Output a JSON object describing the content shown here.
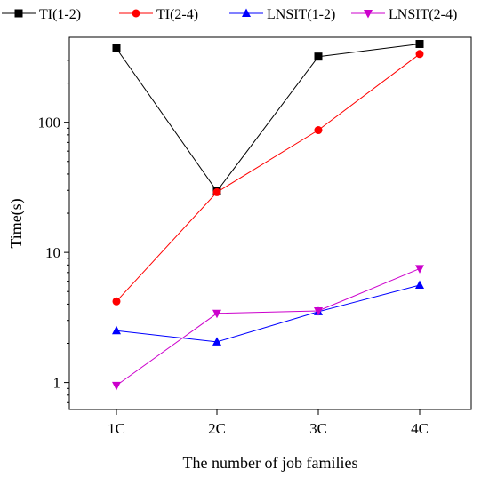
{
  "chart_data": {
    "type": "line",
    "title": "",
    "xlabel": "The number of job families",
    "ylabel": "Time(s)",
    "yscale": "log",
    "ylim": [
      0.62,
      450
    ],
    "categories": [
      "1C",
      "2C",
      "3C",
      "4C"
    ],
    "yticks": [
      1,
      10,
      100
    ],
    "ytick_labels": [
      "1",
      "10",
      "100"
    ],
    "grid": false,
    "legend_position": "top",
    "series": [
      {
        "name": "TI(1-2)",
        "color": "#000000",
        "marker": "square",
        "values": [
          370,
          29.5,
          320,
          400
        ]
      },
      {
        "name": "TI(2-4)",
        "color": "#ff0000",
        "marker": "circle",
        "values": [
          4.2,
          29,
          87,
          335
        ]
      },
      {
        "name": "LNSIT(1-2)",
        "color": "#0000ff",
        "marker": "triangle-up",
        "values": [
          2.5,
          2.05,
          3.5,
          5.6
        ]
      },
      {
        "name": "LNSIT(2-4)",
        "color": "#cc00cc",
        "marker": "triangle-down",
        "values": [
          0.95,
          3.4,
          3.55,
          7.5
        ]
      }
    ]
  }
}
